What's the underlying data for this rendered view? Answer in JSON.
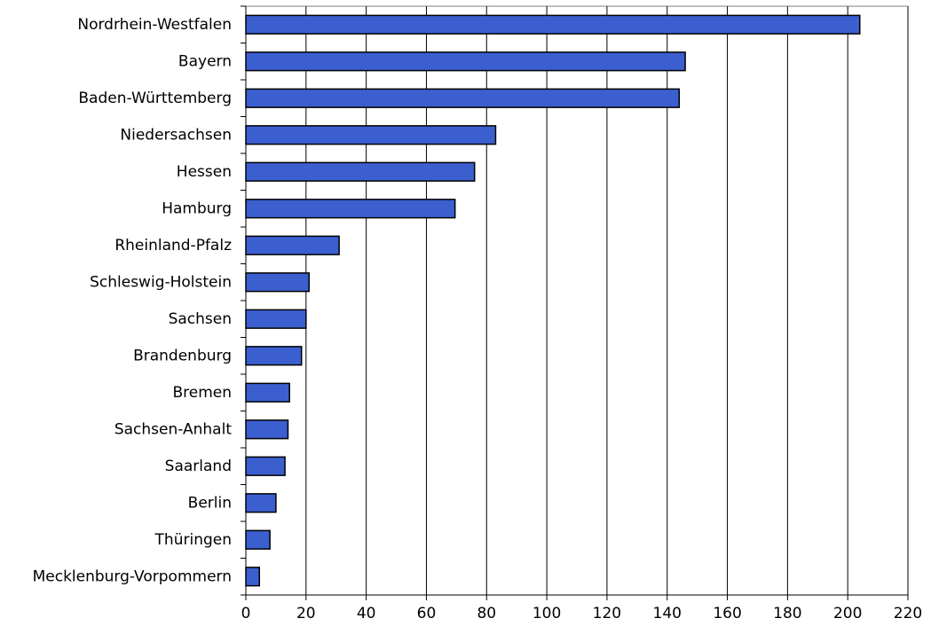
{
  "chart_data": {
    "type": "bar",
    "orientation": "horizontal",
    "title": "",
    "xlabel": "",
    "ylabel": "",
    "categories": [
      "Nordrhein-Westfalen",
      "Bayern",
      "Baden-Württemberg",
      "Niedersachsen",
      "Hessen",
      "Hamburg",
      "Rheinland-Pfalz",
      "Schleswig-Holstein",
      "Sachsen",
      "Brandenburg",
      "Bremen",
      "Sachsen-Anhalt",
      "Saarland",
      "Berlin",
      "Thüringen",
      "Mecklenburg-Vorpommern"
    ],
    "values": [
      204,
      146,
      144,
      83,
      76,
      69.5,
      31,
      21,
      20,
      18.5,
      14.5,
      14,
      13,
      10,
      8,
      4.5
    ],
    "xlim": [
      0,
      220
    ],
    "xticks": [
      0,
      20,
      40,
      60,
      80,
      100,
      120,
      140,
      160,
      180,
      200,
      220
    ],
    "grid": "vertical",
    "legend": "none",
    "colors": {
      "bar_fill": "#3b5fcf",
      "bar_edge": "#000000"
    }
  }
}
